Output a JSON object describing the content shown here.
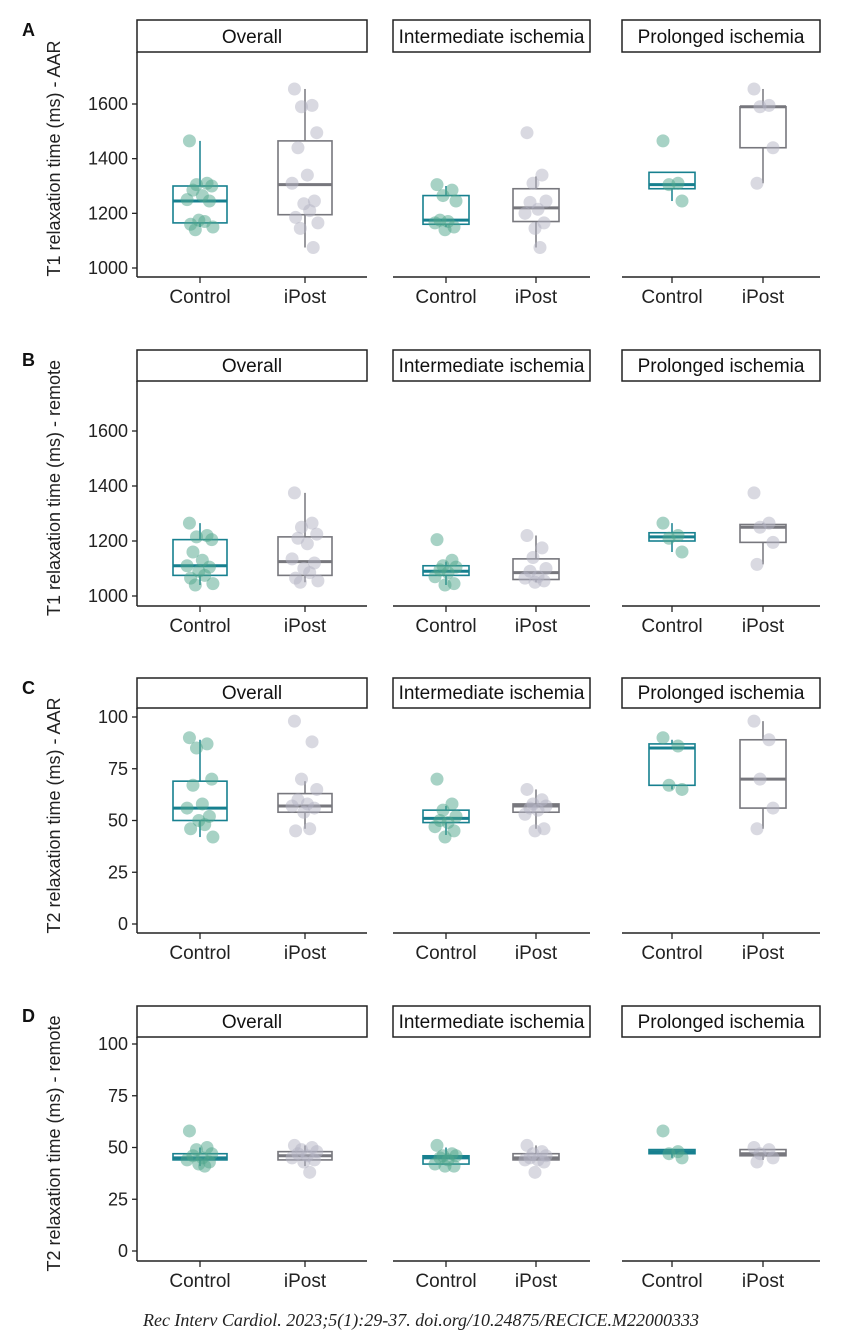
{
  "colors": {
    "control_box": "#17808f",
    "control_point": "#4fa58c",
    "ipost_box": "#77777d",
    "ipost_point": "#b4b4c4"
  },
  "facets": [
    "Overall",
    "Intermediate ischemia",
    "Prolonged ischemia"
  ],
  "categories": [
    "Control",
    "iPost"
  ],
  "citation": "Rec Interv Cardiol. 2023;5(1):29-37. doi.org/10.24875/RECICE.M22000333",
  "chart_data": [
    {
      "type": "box",
      "panel": "A",
      "ylabel": "T1 relaxation time (ms) - AAR",
      "yticks": [
        "1000",
        "1200",
        "1400",
        "1600"
      ],
      "ylim": [
        965,
        1790
      ],
      "facets": [
        {
          "Control": {
            "min": 1150,
            "q1": 1165,
            "median": 1245,
            "q3": 1300,
            "max": 1465,
            "points": [
              1465,
              1310,
              1305,
              1300,
              1285,
              1265,
              1250,
              1245,
              1175,
              1170,
              1160,
              1150,
              1140
            ]
          },
          "iPost": {
            "min": 1075,
            "q1": 1195,
            "median": 1305,
            "q3": 1465,
            "max": 1655,
            "points": [
              1655,
              1595,
              1590,
              1495,
              1440,
              1340,
              1310,
              1245,
              1235,
              1210,
              1185,
              1165,
              1145,
              1075
            ]
          }
        },
        {
          "Control": {
            "min": 1150,
            "q1": 1160,
            "median": 1175,
            "q3": 1265,
            "max": 1300,
            "points": [
              1305,
              1285,
              1265,
              1245,
              1175,
              1170,
              1165,
              1150,
              1140
            ]
          },
          "iPost": {
            "min": 1075,
            "q1": 1170,
            "median": 1220,
            "q3": 1290,
            "max": 1335,
            "points": [
              1495,
              1340,
              1310,
              1245,
              1240,
              1215,
              1200,
              1165,
              1145,
              1075
            ]
          }
        },
        {
          "Control": {
            "min": 1245,
            "q1": 1290,
            "median": 1305,
            "q3": 1350,
            "max": 1350,
            "points": [
              1465,
              1310,
              1305,
              1245
            ]
          },
          "iPost": {
            "min": 1310,
            "q1": 1440,
            "median": 1590,
            "q3": 1590,
            "max": 1655,
            "points": [
              1655,
              1595,
              1590,
              1440,
              1310
            ]
          }
        }
      ]
    },
    {
      "type": "box",
      "panel": "B",
      "ylabel": "T1 relaxation time (ms) - remote",
      "yticks": [
        "1000",
        "1200",
        "1400",
        "1600"
      ],
      "ylim": [
        965,
        1790
      ],
      "facets": [
        {
          "Control": {
            "min": 1040,
            "q1": 1075,
            "median": 1110,
            "q3": 1205,
            "max": 1265,
            "points": [
              1265,
              1220,
              1215,
              1205,
              1160,
              1130,
              1110,
              1105,
              1090,
              1075,
              1065,
              1045,
              1040
            ]
          },
          "iPost": {
            "min": 1050,
            "q1": 1075,
            "median": 1125,
            "q3": 1215,
            "max": 1375,
            "points": [
              1375,
              1265,
              1250,
              1225,
              1210,
              1190,
              1135,
              1120,
              1100,
              1085,
              1065,
              1055,
              1050
            ]
          }
        },
        {
          "Control": {
            "min": 1040,
            "q1": 1075,
            "median": 1090,
            "q3": 1110,
            "max": 1125,
            "points": [
              1205,
              1130,
              1110,
              1105,
              1095,
              1085,
              1070,
              1045,
              1040
            ]
          },
          "iPost": {
            "min": 1050,
            "q1": 1060,
            "median": 1085,
            "q3": 1135,
            "max": 1220,
            "points": [
              1220,
              1175,
              1140,
              1100,
              1090,
              1070,
              1065,
              1055,
              1050
            ]
          }
        },
        {
          "Control": {
            "min": 1160,
            "q1": 1200,
            "median": 1215,
            "q3": 1230,
            "max": 1265,
            "points": [
              1265,
              1220,
              1210,
              1160
            ]
          },
          "iPost": {
            "min": 1115,
            "q1": 1195,
            "median": 1250,
            "q3": 1260,
            "max": 1265,
            "points": [
              1375,
              1265,
              1250,
              1195,
              1115
            ]
          }
        }
      ]
    },
    {
      "type": "box",
      "panel": "C",
      "ylabel": "T2 relaxation time (ms) - AAR",
      "yticks": [
        "0",
        "25",
        "50",
        "75",
        "100"
      ],
      "ylim": [
        -4,
        104
      ],
      "facets": [
        {
          "Control": {
            "min": 42,
            "q1": 50,
            "median": 56,
            "q3": 69,
            "max": 89,
            "points": [
              90,
              87,
              85,
              70,
              67,
              58,
              56,
              52,
              50,
              48,
              46,
              42
            ]
          },
          "iPost": {
            "min": 46,
            "q1": 54,
            "median": 57,
            "q3": 63,
            "max": 69,
            "points": [
              98,
              88,
              70,
              65,
              60,
              58,
              57,
              56,
              54,
              46,
              45
            ]
          }
        },
        {
          "Control": {
            "min": 43,
            "q1": 49,
            "median": 51,
            "q3": 55,
            "max": 57,
            "points": [
              70,
              58,
              55,
              52,
              50,
              49,
              47,
              45,
              42
            ]
          },
          "iPost": {
            "min": 46,
            "q1": 54,
            "median": 57,
            "q3": 58,
            "max": 65,
            "points": [
              65,
              60,
              58,
              57,
              56,
              55,
              53,
              46,
              45
            ]
          }
        },
        {
          "Control": {
            "min": 65,
            "q1": 67,
            "median": 85,
            "q3": 87,
            "max": 89,
            "points": [
              90,
              86,
              67,
              65
            ]
          },
          "iPost": {
            "min": 46,
            "q1": 56,
            "median": 70,
            "q3": 89,
            "max": 98,
            "points": [
              98,
              89,
              70,
              56,
              46
            ]
          }
        }
      ]
    },
    {
      "type": "box",
      "panel": "D",
      "ylabel": "T2 relaxation time (ms) - remote",
      "yticks": [
        "0",
        "25",
        "50",
        "75",
        "100"
      ],
      "ylim": [
        -4,
        104
      ],
      "facets": [
        {
          "Control": {
            "min": 41,
            "q1": 44,
            "median": 45,
            "q3": 47,
            "max": 50,
            "points": [
              58,
              50,
              49,
              47,
              46,
              45,
              44,
              43,
              42,
              41
            ]
          },
          "iPost": {
            "min": 41,
            "q1": 44,
            "median": 46,
            "q3": 48,
            "max": 51,
            "points": [
              51,
              50,
              49,
              48,
              47,
              46,
              45,
              44,
              43,
              38
            ]
          }
        },
        {
          "Control": {
            "min": 42,
            "q1": 42,
            "median": 45,
            "q3": 46,
            "max": 50,
            "points": [
              51,
              47,
              46,
              46,
              45,
              44,
              42,
              41,
              41
            ]
          },
          "iPost": {
            "min": 44,
            "q1": 44,
            "median": 45,
            "q3": 47,
            "max": 51,
            "points": [
              51,
              48,
              47,
              46,
              45,
              44,
              44,
              43,
              38
            ]
          }
        },
        {
          "Control": {
            "min": 45,
            "q1": 47,
            "median": 48,
            "q3": 49,
            "max": 49,
            "points": [
              58,
              48,
              47,
              45
            ]
          },
          "iPost": {
            "min": 44,
            "q1": 46,
            "median": 47,
            "q3": 49,
            "max": 49,
            "points": [
              50,
              49,
              47,
              45,
              43
            ]
          }
        }
      ]
    }
  ]
}
